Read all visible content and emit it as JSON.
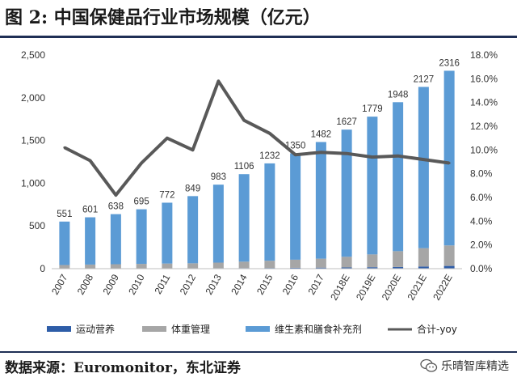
{
  "header": {
    "title": "图 2:  中国保健品行业市场规模（亿元）"
  },
  "footer": {
    "source": "数据来源：Euromonitor，东北证券",
    "watermark": "乐晴智库精选"
  },
  "colors": {
    "vitamins": "#5B9BD5",
    "weight": "#A6A6A6",
    "sports": "#2E5DA8",
    "yoy": "#595959"
  },
  "chart_data": {
    "type": "bar+line",
    "categories": [
      "2007",
      "2008",
      "2009",
      "2010",
      "2011",
      "2012",
      "2013",
      "2014",
      "2015",
      "2016",
      "2017",
      "2018E",
      "2019E",
      "2020E",
      "2021E",
      "2022E"
    ],
    "totals": [
      551,
      601,
      638,
      695,
      772,
      849,
      983,
      1106,
      1232,
      1350,
      1482,
      1627,
      1779,
      1948,
      2127,
      2316
    ],
    "series": [
      {
        "name": "运动营养",
        "type": "bar",
        "axis": "left",
        "values": [
          3,
          3,
          4,
          4,
          5,
          5,
          6,
          7,
          8,
          10,
          12,
          14,
          17,
          20,
          25,
          32
        ]
      },
      {
        "name": "体重管理",
        "type": "bar",
        "axis": "left",
        "values": [
          40,
          45,
          48,
          52,
          55,
          58,
          65,
          75,
          85,
          95,
          105,
          125,
          150,
          185,
          215,
          240
        ]
      },
      {
        "name": "维生素和膳食补充剂",
        "type": "bar",
        "axis": "left",
        "values": [
          508,
          553,
          586,
          639,
          712,
          786,
          912,
          1024,
          1139,
          1245,
          1365,
          1488,
          1612,
          1743,
          1887,
          2044
        ]
      },
      {
        "name": "合计-yoy",
        "type": "line",
        "axis": "right",
        "values": [
          10.2,
          9.1,
          6.2,
          8.9,
          11.0,
          10.0,
          15.8,
          12.5,
          11.4,
          9.6,
          9.8,
          9.7,
          9.4,
          9.5,
          9.2,
          8.9
        ]
      }
    ],
    "yleft": {
      "min": 0,
      "max": 2500,
      "ticks": [
        "0",
        "500",
        "1,000",
        "1,500",
        "2,000",
        "2,500"
      ]
    },
    "yright": {
      "min": 0,
      "max": 18,
      "ticks": [
        "0.0%",
        "2.0%",
        "4.0%",
        "6.0%",
        "8.0%",
        "10.0%",
        "12.0%",
        "14.0%",
        "16.0%",
        "18.0%"
      ]
    },
    "legend_position": "bottom",
    "grid": false
  }
}
